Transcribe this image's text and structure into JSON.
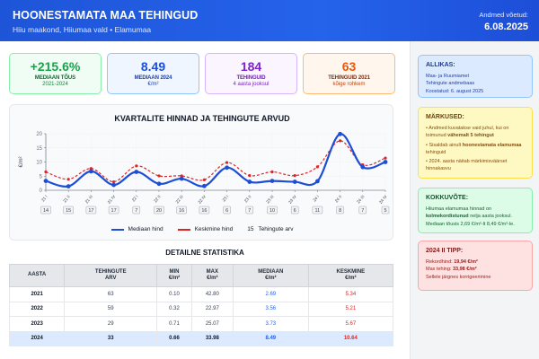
{
  "header": {
    "title": "HOONESTAMATA MAA TEHINGUD",
    "subtitle": "Hiiu maakond, Hiiumaa vald • Elamumaa",
    "date_label": "Andmed võetud:",
    "date": "6.08.2025"
  },
  "kpis": [
    {
      "value": "+215.6%",
      "label": "MEDIAAN TÕUS",
      "sub": "2021-2024"
    },
    {
      "value": "8.49",
      "label": "MEDIAAN 2024",
      "sub": "€/m²"
    },
    {
      "value": "184",
      "label": "TEHINGUID",
      "sub": "4 aasta jooksul"
    },
    {
      "value": "63",
      "label": "TEHINGUID 2021",
      "sub": "kõige rohkem"
    }
  ],
  "chart_data": {
    "type": "line",
    "title": "KVARTALITE HINNAD JA TEHINGUTE ARVUD",
    "ylabel": "€/m²",
    "ylim": [
      0,
      20
    ],
    "yticks": [
      "0",
      "5",
      "10",
      "15",
      "20"
    ],
    "categories": [
      "21 I",
      "21 II",
      "21 III",
      "21 IV",
      "22 I",
      "22 II",
      "22 III",
      "22 IV",
      "23 I",
      "23 II",
      "23 III",
      "23 IV",
      "24 I",
      "24 II",
      "24 III",
      "24 IV"
    ],
    "series": [
      {
        "name": "Mediaan hind",
        "color": "#1d4ed8",
        "values": [
          3.3,
          1.4,
          6.7,
          1.9,
          6.5,
          2.3,
          4.1,
          1.5,
          8.0,
          3.0,
          3.3,
          3.0,
          3.2,
          19.9,
          8.2,
          10.0
        ]
      },
      {
        "name": "Keskmine hind",
        "color": "#dc2626",
        "values": [
          6.5,
          3.9,
          7.7,
          3.0,
          8.6,
          5.1,
          5.1,
          3.7,
          9.8,
          5.2,
          6.5,
          5.2,
          8.3,
          17.5,
          9.0,
          11.4
        ]
      }
    ],
    "deal_counts": [
      "14",
      "15",
      "17",
      "17",
      "7",
      "20",
      "16",
      "16",
      "6",
      "7",
      "10",
      "6",
      "11",
      "8",
      "7",
      "5"
    ],
    "legend": {
      "median": "Mediaan hind",
      "mean": "Keskmine hind",
      "count_sample": "15",
      "count": "Tehingute arv"
    },
    "grid": true,
    "legend_position": "bottom"
  },
  "stats": {
    "title": "DETAILNE STATISTIKA",
    "headers": [
      {
        "l1": "AASTA",
        "l2": ""
      },
      {
        "l1": "TEHINGUTE",
        "l2": "ARV"
      },
      {
        "l1": "MIN",
        "l2": "€/m²"
      },
      {
        "l1": "MAX",
        "l2": "€/m²"
      },
      {
        "l1": "MEDIAAN",
        "l2": "€/m²"
      },
      {
        "l1": "KESKMINE",
        "l2": "€/m²"
      }
    ],
    "rows": [
      {
        "year": "2021",
        "count": "63",
        "min": "0.10",
        "max": "42.80",
        "median": "2.69",
        "mean": "5.34"
      },
      {
        "year": "2022",
        "count": "59",
        "min": "0.32",
        "max": "22.97",
        "median": "3.56",
        "mean": "5.21"
      },
      {
        "year": "2023",
        "count": "29",
        "min": "0.71",
        "max": "25.07",
        "median": "3.73",
        "mean": "5.67"
      },
      {
        "year": "2024",
        "count": "33",
        "min": "0.66",
        "max": "33.98",
        "median": "8.49",
        "mean": "10.64"
      }
    ]
  },
  "sidebar": {
    "source": {
      "title": "ALLIKAS:",
      "line1": "Maa- ja Ruumiamet",
      "line2": "Tehingute andmebaas",
      "line3": "Koostatud: 6. august 2025"
    },
    "notes": {
      "title": "MÄRKUSED:",
      "n1a": "• Andmed kuvatakse vaid juhul, kui on toimunud ",
      "n1b": "vähemalt 5 tehingut",
      "n2a": "• Sisaldab ainult ",
      "n2b": "hoonestamata elamumaa",
      "n2c": " tehinguid",
      "n3": "• 2024. aasta näitab märkimisväärset hinnakasvu"
    },
    "summary": {
      "title": "KOKKUVÕTE:",
      "a": "Hiiumaa elamumaa hinnad on ",
      "b": "kolmekordistunud",
      "c": " nelja aasta jooksul. Mediaan tõusis 2,69 €/m²-lt 8,49 €/m²-le."
    },
    "peak": {
      "title": "2024 II TIPP:",
      "l1": "Rekordhind: ",
      "l1v": "19,94 €/m²",
      "l2": "Max tehing: ",
      "l2v": "33,98 €/m²",
      "l3": "Sellele järgnes korrigeerimine"
    }
  }
}
